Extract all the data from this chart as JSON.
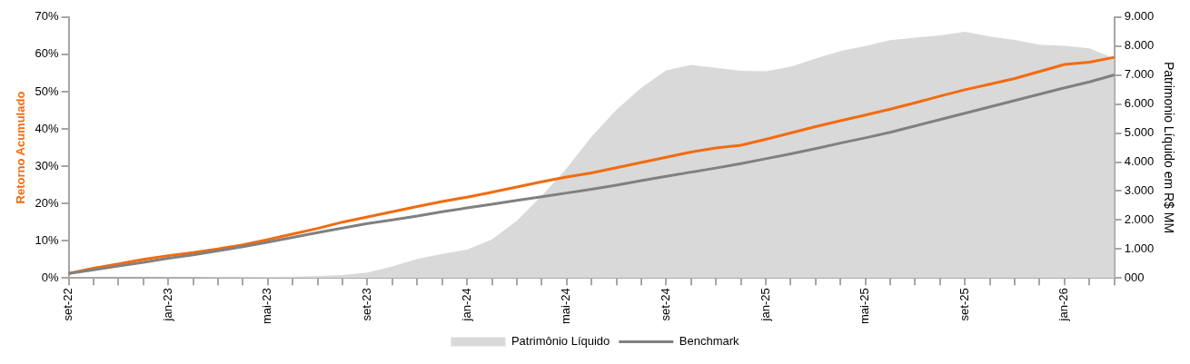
{
  "chart_data": {
    "type": "line",
    "ylabel": "Retorno Acumulado",
    "y2label": "Patrimonio Líquido em R$ MM",
    "categories": [
      "set-22",
      null,
      null,
      null,
      "jan-23",
      null,
      null,
      null,
      "mai-23",
      null,
      null,
      null,
      "set-23",
      null,
      null,
      null,
      "jan-24",
      null,
      null,
      null,
      "mai-24",
      null,
      null,
      null,
      "set-24",
      null,
      null,
      null,
      "jan-25",
      null,
      null,
      null,
      "mai-25",
      null,
      null,
      null,
      "set-25",
      null,
      null,
      null,
      "jan-26",
      null,
      null
    ],
    "series": [
      {
        "name": "Patrimônio Líquido",
        "type": "area",
        "axis": "y2",
        "color": "#d9d9d9",
        "values": [
          0,
          0,
          0,
          10,
          20,
          20,
          30,
          30,
          40,
          50,
          70,
          100,
          190,
          400,
          660,
          830,
          980,
          1330,
          1970,
          2830,
          3780,
          4880,
          5800,
          6560,
          7160,
          7350,
          7250,
          7150,
          7130,
          7290,
          7570,
          7830,
          8000,
          8200,
          8290,
          8370,
          8490,
          8330,
          8210,
          8050,
          8010,
          7920,
          7570
        ]
      },
      {
        "name": "Benchmark",
        "type": "line",
        "color": "#808080",
        "values": [
          1.2,
          2.2,
          3.2,
          4.2,
          5.3,
          6.2,
          7.3,
          8.4,
          9.6,
          10.9,
          12.2,
          13.4,
          14.6,
          15.6,
          16.6,
          17.8,
          18.8,
          19.8,
          20.8,
          21.8,
          22.8,
          23.8,
          24.9,
          26.1,
          27.3,
          28.4,
          29.5,
          30.7,
          32.0,
          33.3,
          34.7,
          36.2,
          37.6,
          39.1,
          40.8,
          42.5,
          44.2,
          45.9,
          47.6,
          49.3,
          51.0,
          52.6,
          54.5
        ]
      },
      {
        "type": "line",
        "color": "#f26b0f",
        "values": [
          1.2,
          2.6,
          3.8,
          5.0,
          6.0,
          6.8,
          7.8,
          8.9,
          10.3,
          11.8,
          13.3,
          15.0,
          16.4,
          17.8,
          19.2,
          20.5,
          21.7,
          23.0,
          24.4,
          25.8,
          27.1,
          28.2,
          29.6,
          31.0,
          32.4,
          33.8,
          34.9,
          35.6,
          37.2,
          38.9,
          40.6,
          42.2,
          43.7,
          45.3,
          47.0,
          48.8,
          50.5,
          52.0,
          53.5,
          55.4,
          57.3,
          57.9,
          59.2
        ]
      }
    ],
    "ylim": [
      0,
      70
    ],
    "yticks": [
      {
        "value": 0,
        "label": "0%"
      },
      {
        "value": 10,
        "label": "10%"
      },
      {
        "value": 20,
        "label": "20%"
      },
      {
        "value": 30,
        "label": "30%"
      },
      {
        "value": 40,
        "label": "40%"
      },
      {
        "value": 50,
        "label": "50%"
      },
      {
        "value": 60,
        "label": "60%"
      },
      {
        "value": 70,
        "label": "70%"
      }
    ],
    "y2lim": [
      0,
      9000
    ],
    "y2ticks": [
      {
        "value": 0,
        "label": "000"
      },
      {
        "value": 1000,
        "label": "1.000"
      },
      {
        "value": 2000,
        "label": "2.000"
      },
      {
        "value": 3000,
        "label": "3.000"
      },
      {
        "value": 4000,
        "label": "4.000"
      },
      {
        "value": 5000,
        "label": "5.000"
      },
      {
        "value": 6000,
        "label": "6.000"
      },
      {
        "value": 7000,
        "label": "7.000"
      },
      {
        "value": 8000,
        "label": "8.000"
      },
      {
        "value": 9000,
        "label": "9.000"
      }
    ],
    "grid": false,
    "legend": "bottom",
    "marker": "none",
    "line_style": "solid"
  }
}
